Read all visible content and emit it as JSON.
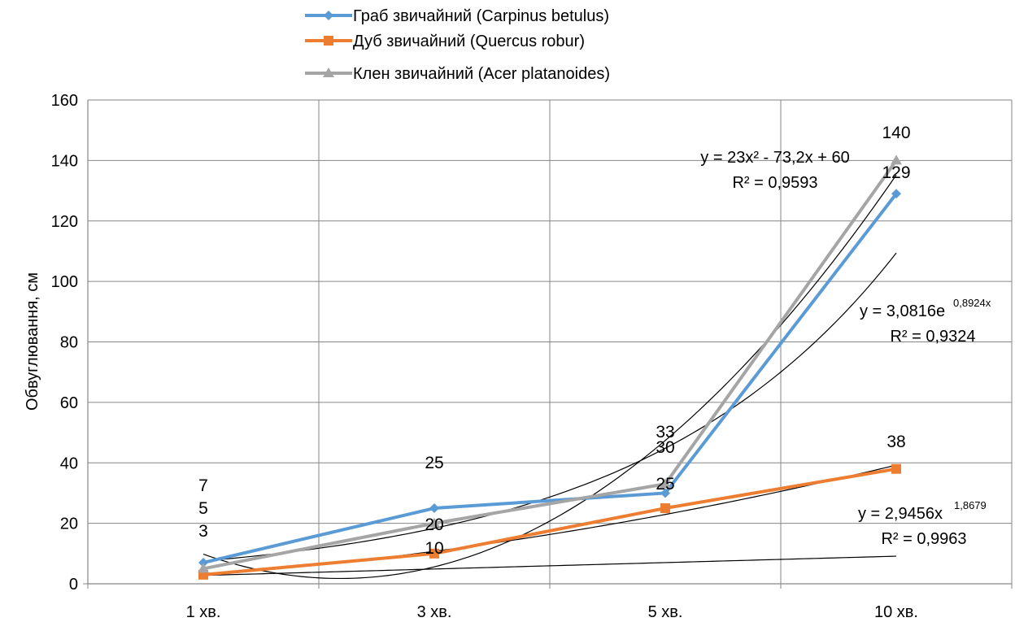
{
  "chart_data": {
    "type": "line",
    "categories": [
      "1 хв.",
      "3 хв.",
      "5 хв.",
      "10 хв."
    ],
    "ylabel": "Обвуглювання, см",
    "ylim": [
      0,
      160
    ],
    "yticks": [
      0,
      20,
      40,
      60,
      80,
      100,
      120,
      140,
      160
    ],
    "grid": true,
    "legend_position": "top",
    "series": [
      {
        "name": "Граб звичайний (Carpinus betulus)",
        "values": [
          7,
          25,
          30,
          129
        ],
        "color": "#5B9BD5",
        "marker": "diamond",
        "labels": [
          "7",
          "25",
          "30",
          "129"
        ]
      },
      {
        "name": "Дуб звичайний (Quercus robur)",
        "values": [
          3,
          10,
          25,
          38
        ],
        "color": "#ED7D31",
        "marker": "square",
        "labels": [
          "3",
          "10",
          "25",
          "38"
        ]
      },
      {
        "name": "Клен звичайний (Acer platanoides)",
        "values": [
          5,
          20,
          33,
          140
        ],
        "color": "#A5A5A5",
        "marker": "triangle",
        "labels": [
          "5",
          "20",
          "33",
          "140"
        ]
      }
    ],
    "trendlines": [
      {
        "type": "polynomial",
        "coefficients": [
          23,
          -73.2,
          60
        ],
        "equation": "y = 23x² - 73,2x + 60",
        "r2": "R² = 0,9593"
      },
      {
        "type": "exponential",
        "a": 3.0816,
        "b": 0.8924,
        "equation_base": "y = 3,0816e",
        "equation_exp": "0,8924x",
        "r2": "R² = 0,9324"
      },
      {
        "type": "power",
        "a": 2.9456,
        "b": 1.8679,
        "equation_base": "y = 2,9456x",
        "equation_exp": "1,8679",
        "r2": "R² = 0,9963"
      },
      {
        "type": "linear",
        "slope": 2.12,
        "intercept": 0.65
      }
    ]
  }
}
